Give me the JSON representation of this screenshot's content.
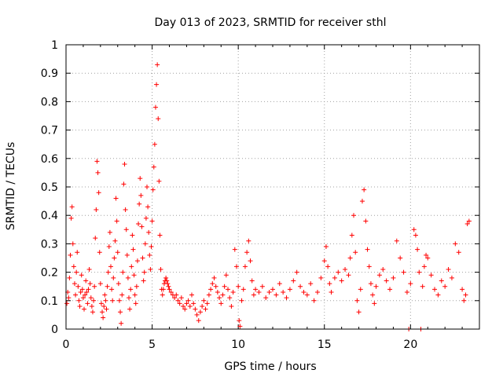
{
  "chart_data": {
    "type": "scatter",
    "title": "Day 013 of 2023, SRMTID for receiver sthl",
    "xlabel": "GPS time / hours",
    "ylabel": "SRMTID / TECUs",
    "xlim": [
      0,
      24
    ],
    "ylim": [
      0,
      1
    ],
    "xticks": [
      0,
      5,
      10,
      15,
      20
    ],
    "xtick_labels": [
      "0",
      "5",
      "10",
      "15",
      "20"
    ],
    "yticks": [
      0,
      0.1,
      0.2,
      0.3,
      0.4,
      0.5,
      0.6,
      0.7,
      0.8,
      0.9,
      1
    ],
    "ytick_labels": [
      "0",
      "0.1",
      "0.2",
      "0.3",
      "0.4",
      "0.5",
      "0.6",
      "0.7",
      "0.8",
      "0.9",
      "1"
    ],
    "grid": true,
    "marker": "+",
    "color": "#ff0000",
    "series": [
      {
        "name": "SRMTID",
        "points": [
          [
            0.05,
            0.09
          ],
          [
            0.1,
            0.13
          ],
          [
            0.15,
            0.11
          ],
          [
            0.2,
            0.18
          ],
          [
            0.25,
            0.26
          ],
          [
            0.3,
            0.39
          ],
          [
            0.35,
            0.43
          ],
          [
            0.4,
            0.3
          ],
          [
            0.45,
            0.22
          ],
          [
            0.5,
            0.16
          ],
          [
            0.55,
            0.12
          ],
          [
            0.6,
            0.2
          ],
          [
            0.65,
            0.27
          ],
          [
            0.7,
            0.15
          ],
          [
            0.75,
            0.1
          ],
          [
            0.8,
            0.08
          ],
          [
            0.85,
            0.13
          ],
          [
            0.9,
            0.19
          ],
          [
            0.95,
            0.14
          ],
          [
            1.0,
            0.11
          ],
          [
            1.05,
            0.07
          ],
          [
            1.1,
            0.12
          ],
          [
            1.15,
            0.17
          ],
          [
            1.2,
            0.13
          ],
          [
            1.25,
            0.09
          ],
          [
            1.3,
            0.14
          ],
          [
            1.35,
            0.21
          ],
          [
            1.4,
            0.16
          ],
          [
            1.45,
            0.11
          ],
          [
            1.5,
            0.08
          ],
          [
            1.55,
            0.06
          ],
          [
            1.6,
            0.1
          ],
          [
            1.65,
            0.15
          ],
          [
            1.7,
            0.32
          ],
          [
            1.75,
            0.42
          ],
          [
            1.8,
            0.59
          ],
          [
            1.85,
            0.55
          ],
          [
            1.9,
            0.48
          ],
          [
            1.95,
            0.27
          ],
          [
            2.0,
            0.16
          ],
          [
            2.05,
            0.09
          ],
          [
            2.1,
            0.06
          ],
          [
            2.15,
            0.04
          ],
          [
            2.2,
            0.08
          ],
          [
            2.25,
            0.12
          ],
          [
            2.3,
            0.1
          ],
          [
            2.35,
            0.07
          ],
          [
            2.4,
            0.15
          ],
          [
            2.45,
            0.2
          ],
          [
            2.5,
            0.29
          ],
          [
            2.55,
            0.34
          ],
          [
            2.6,
            0.22
          ],
          [
            2.65,
            0.14
          ],
          [
            2.7,
            0.1
          ],
          [
            2.75,
            0.18
          ],
          [
            2.8,
            0.25
          ],
          [
            2.85,
            0.31
          ],
          [
            2.9,
            0.46
          ],
          [
            2.95,
            0.38
          ],
          [
            3.0,
            0.27
          ],
          [
            3.05,
            0.16
          ],
          [
            3.1,
            0.1
          ],
          [
            3.15,
            0.06
          ],
          [
            3.2,
            0.02
          ],
          [
            3.25,
            0.12
          ],
          [
            3.3,
            0.2
          ],
          [
            3.35,
            0.51
          ],
          [
            3.4,
            0.58
          ],
          [
            3.45,
            0.42
          ],
          [
            3.5,
            0.35
          ],
          [
            3.55,
            0.26
          ],
          [
            3.6,
            0.18
          ],
          [
            3.65,
            0.11
          ],
          [
            3.7,
            0.07
          ],
          [
            3.75,
            0.14
          ],
          [
            3.8,
            0.22
          ],
          [
            3.85,
            0.33
          ],
          [
            3.9,
            0.28
          ],
          [
            3.95,
            0.19
          ],
          [
            4.0,
            0.12
          ],
          [
            4.05,
            0.09
          ],
          [
            4.1,
            0.15
          ],
          [
            4.15,
            0.24
          ],
          [
            4.2,
            0.37
          ],
          [
            4.25,
            0.44
          ],
          [
            4.3,
            0.53
          ],
          [
            4.35,
            0.47
          ],
          [
            4.4,
            0.36
          ],
          [
            4.45,
            0.25
          ],
          [
            4.5,
            0.17
          ],
          [
            4.55,
            0.2
          ],
          [
            4.6,
            0.3
          ],
          [
            4.65,
            0.39
          ],
          [
            4.7,
            0.5
          ],
          [
            4.75,
            0.43
          ],
          [
            4.8,
            0.34
          ],
          [
            4.85,
            0.26
          ],
          [
            4.9,
            0.21
          ],
          [
            4.95,
            0.29
          ],
          [
            5.0,
            0.38
          ],
          [
            5.05,
            0.49
          ],
          [
            5.1,
            0.57
          ],
          [
            5.15,
            0.65
          ],
          [
            5.2,
            0.78
          ],
          [
            5.25,
            0.86
          ],
          [
            5.3,
            0.93
          ],
          [
            5.35,
            0.74
          ],
          [
            5.4,
            0.52
          ],
          [
            5.45,
            0.33
          ],
          [
            5.5,
            0.21
          ],
          [
            5.55,
            0.14
          ],
          [
            5.6,
            0.12
          ],
          [
            5.65,
            0.14
          ],
          [
            5.7,
            0.16
          ],
          [
            5.75,
            0.17
          ],
          [
            5.8,
            0.18
          ],
          [
            5.85,
            0.17
          ],
          [
            5.9,
            0.16
          ],
          [
            5.95,
            0.15
          ],
          [
            6.0,
            0.14
          ],
          [
            6.1,
            0.13
          ],
          [
            6.2,
            0.12
          ],
          [
            6.3,
            0.11
          ],
          [
            6.4,
            0.12
          ],
          [
            6.5,
            0.1
          ],
          [
            6.6,
            0.09
          ],
          [
            6.7,
            0.11
          ],
          [
            6.8,
            0.08
          ],
          [
            6.9,
            0.07
          ],
          [
            7.0,
            0.09
          ],
          [
            7.1,
            0.1
          ],
          [
            7.2,
            0.08
          ],
          [
            7.3,
            0.12
          ],
          [
            7.4,
            0.09
          ],
          [
            7.5,
            0.07
          ],
          [
            7.6,
            0.05
          ],
          [
            7.7,
            0.03
          ],
          [
            7.8,
            0.06
          ],
          [
            7.9,
            0.08
          ],
          [
            8.0,
            0.1
          ],
          [
            8.1,
            0.07
          ],
          [
            8.2,
            0.09
          ],
          [
            8.3,
            0.12
          ],
          [
            8.4,
            0.14
          ],
          [
            8.5,
            0.16
          ],
          [
            8.6,
            0.18
          ],
          [
            8.7,
            0.15
          ],
          [
            8.8,
            0.13
          ],
          [
            8.9,
            0.11
          ],
          [
            9.0,
            0.09
          ],
          [
            9.1,
            0.12
          ],
          [
            9.2,
            0.15
          ],
          [
            9.3,
            0.19
          ],
          [
            9.4,
            0.14
          ],
          [
            9.5,
            0.11
          ],
          [
            9.6,
            0.08
          ],
          [
            9.7,
            0.13
          ],
          [
            9.8,
            0.28
          ],
          [
            9.9,
            0.22
          ],
          [
            10.0,
            0.15
          ],
          [
            10.05,
            0.03
          ],
          [
            10.1,
            0.01
          ],
          [
            10.2,
            0.1
          ],
          [
            10.3,
            0.14
          ],
          [
            10.4,
            0.22
          ],
          [
            10.5,
            0.27
          ],
          [
            10.6,
            0.31
          ],
          [
            10.7,
            0.24
          ],
          [
            10.8,
            0.17
          ],
          [
            10.9,
            0.12
          ],
          [
            11.0,
            0.14
          ],
          [
            11.2,
            0.13
          ],
          [
            11.4,
            0.15
          ],
          [
            11.6,
            0.11
          ],
          [
            11.8,
            0.13
          ],
          [
            12.0,
            0.14
          ],
          [
            12.2,
            0.12
          ],
          [
            12.4,
            0.16
          ],
          [
            12.6,
            0.13
          ],
          [
            12.8,
            0.11
          ],
          [
            13.0,
            0.14
          ],
          [
            13.2,
            0.17
          ],
          [
            13.4,
            0.2
          ],
          [
            13.6,
            0.15
          ],
          [
            13.8,
            0.13
          ],
          [
            14.0,
            0.12
          ],
          [
            14.2,
            0.16
          ],
          [
            14.4,
            0.1
          ],
          [
            14.6,
            0.13
          ],
          [
            14.8,
            0.18
          ],
          [
            15.0,
            0.24
          ],
          [
            15.1,
            0.29
          ],
          [
            15.2,
            0.22
          ],
          [
            15.3,
            0.16
          ],
          [
            15.4,
            0.13
          ],
          [
            15.6,
            0.18
          ],
          [
            15.8,
            0.2
          ],
          [
            16.0,
            0.17
          ],
          [
            16.2,
            0.21
          ],
          [
            16.4,
            0.19
          ],
          [
            16.5,
            0.25
          ],
          [
            16.6,
            0.33
          ],
          [
            16.7,
            0.4
          ],
          [
            16.8,
            0.27
          ],
          [
            16.9,
            0.1
          ],
          [
            17.0,
            0.06
          ],
          [
            17.1,
            0.14
          ],
          [
            17.2,
            0.45
          ],
          [
            17.3,
            0.49
          ],
          [
            17.4,
            0.38
          ],
          [
            17.5,
            0.28
          ],
          [
            17.6,
            0.22
          ],
          [
            17.7,
            0.16
          ],
          [
            17.8,
            0.12
          ],
          [
            17.9,
            0.09
          ],
          [
            18.0,
            0.15
          ],
          [
            18.2,
            0.19
          ],
          [
            18.4,
            0.21
          ],
          [
            18.6,
            0.17
          ],
          [
            18.8,
            0.14
          ],
          [
            19.0,
            0.18
          ],
          [
            19.2,
            0.31
          ],
          [
            19.4,
            0.25
          ],
          [
            19.6,
            0.2
          ],
          [
            19.8,
            0.13
          ],
          [
            19.9,
            0.0
          ],
          [
            20.0,
            0.16
          ],
          [
            20.2,
            0.35
          ],
          [
            20.3,
            0.33
          ],
          [
            20.4,
            0.28
          ],
          [
            20.5,
            0.2
          ],
          [
            20.6,
            0.0
          ],
          [
            20.7,
            0.15
          ],
          [
            20.8,
            0.22
          ],
          [
            20.9,
            0.26
          ],
          [
            21.0,
            0.25
          ],
          [
            21.2,
            0.19
          ],
          [
            21.4,
            0.14
          ],
          [
            21.6,
            0.12
          ],
          [
            21.8,
            0.17
          ],
          [
            22.0,
            0.15
          ],
          [
            22.2,
            0.21
          ],
          [
            22.4,
            0.18
          ],
          [
            22.6,
            0.3
          ],
          [
            22.8,
            0.27
          ],
          [
            23.0,
            0.14
          ],
          [
            23.1,
            0.1
          ],
          [
            23.2,
            0.12
          ],
          [
            23.3,
            0.37
          ],
          [
            23.4,
            0.38
          ]
        ]
      }
    ]
  }
}
